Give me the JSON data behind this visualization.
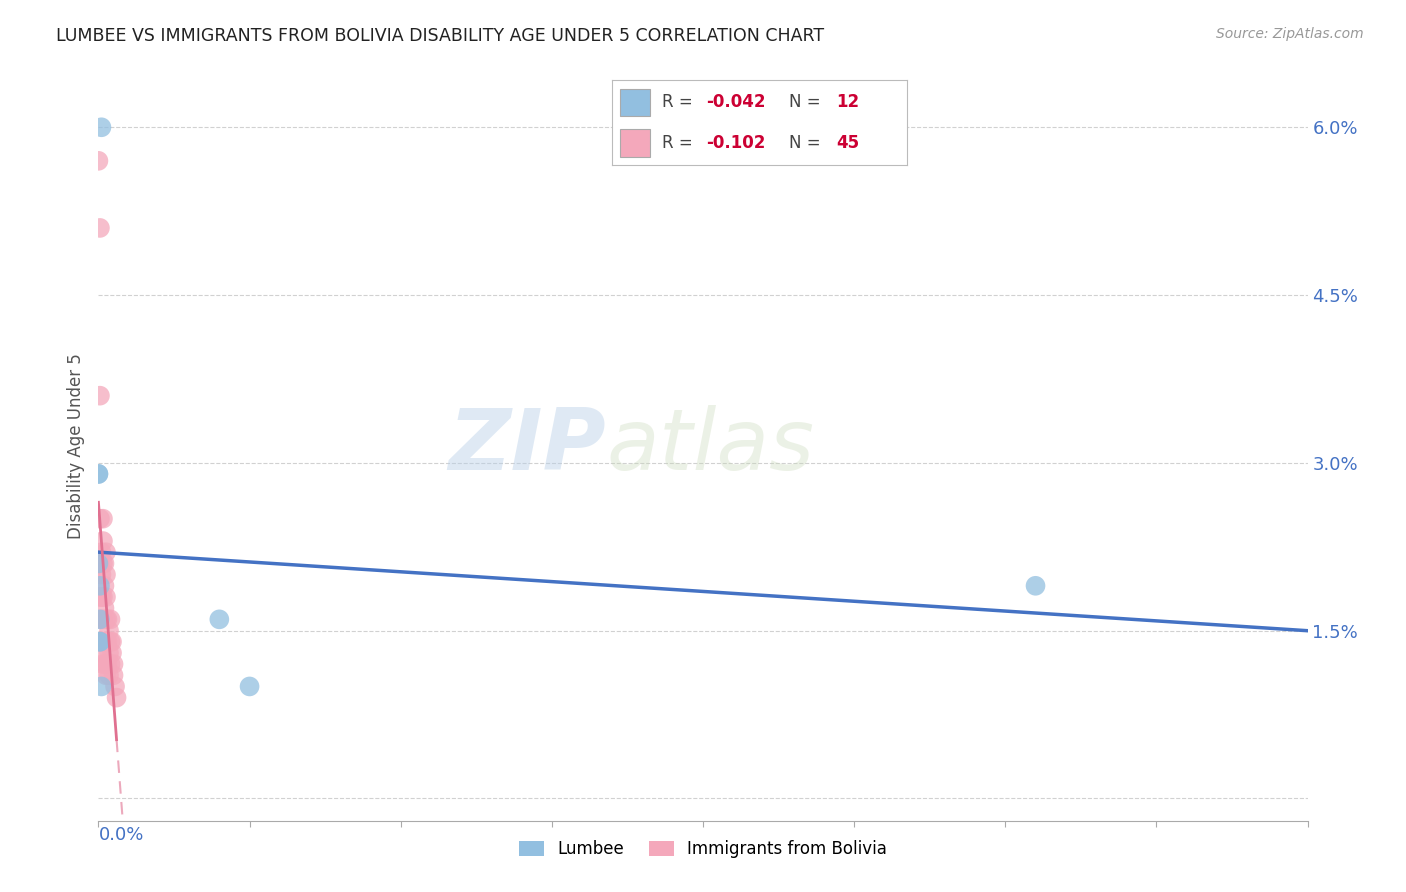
{
  "title": "LUMBEE VS IMMIGRANTS FROM BOLIVIA DISABILITY AGE UNDER 5 CORRELATION CHART",
  "source": "Source: ZipAtlas.com",
  "ylabel": "Disability Age Under 5",
  "ytick_vals": [
    0.0,
    0.015,
    0.03,
    0.045,
    0.06
  ],
  "ytick_labels": [
    "",
    "1.5%",
    "3.0%",
    "4.5%",
    "6.0%"
  ],
  "xmin": 0.0,
  "xmax": 0.8,
  "ymin": -0.002,
  "ymax": 0.065,
  "lumbee_color": "#92bfe0",
  "bolivia_color": "#f4a8bb",
  "lumbee_legend": "Lumbee",
  "bolivia_legend": "Immigrants from Bolivia",
  "R_lumbee": "-0.042",
  "N_lumbee": "12",
  "R_bolivia": "-0.102",
  "N_bolivia": "45",
  "lumbee_x": [
    0.002,
    0.0,
    0.0,
    0.0,
    0.001,
    0.001,
    0.001,
    0.001,
    0.62,
    0.08,
    0.1,
    0.002
  ],
  "lumbee_y": [
    0.06,
    0.029,
    0.029,
    0.021,
    0.019,
    0.016,
    0.014,
    0.014,
    0.019,
    0.016,
    0.01,
    0.01
  ],
  "bolivia_x": [
    0.0,
    0.001,
    0.001,
    0.001,
    0.001,
    0.001,
    0.001,
    0.002,
    0.002,
    0.002,
    0.002,
    0.002,
    0.003,
    0.003,
    0.003,
    0.003,
    0.003,
    0.003,
    0.003,
    0.004,
    0.004,
    0.004,
    0.004,
    0.005,
    0.005,
    0.005,
    0.005,
    0.005,
    0.005,
    0.005,
    0.006,
    0.006,
    0.006,
    0.007,
    0.007,
    0.007,
    0.008,
    0.008,
    0.008,
    0.009,
    0.009,
    0.01,
    0.01,
    0.011,
    0.012
  ],
  "bolivia_y": [
    0.057,
    0.051,
    0.036,
    0.025,
    0.021,
    0.018,
    0.014,
    0.022,
    0.02,
    0.018,
    0.016,
    0.013,
    0.025,
    0.023,
    0.021,
    0.018,
    0.016,
    0.014,
    0.012,
    0.021,
    0.019,
    0.017,
    0.014,
    0.022,
    0.02,
    0.018,
    0.016,
    0.014,
    0.012,
    0.011,
    0.016,
    0.014,
    0.012,
    0.015,
    0.013,
    0.011,
    0.016,
    0.014,
    0.012,
    0.014,
    0.013,
    0.012,
    0.011,
    0.01,
    0.009
  ],
  "watermark_zip": "ZIP",
  "watermark_atlas": "atlas",
  "background_color": "#ffffff",
  "grid_color": "#cccccc",
  "title_color": "#222222",
  "axis_label_color": "#4472c4",
  "trend_lumbee_color": "#4472c4",
  "trend_bolivia_color": "#e07090",
  "text_color_dark": "#444444",
  "text_color_red": "#cc0033"
}
